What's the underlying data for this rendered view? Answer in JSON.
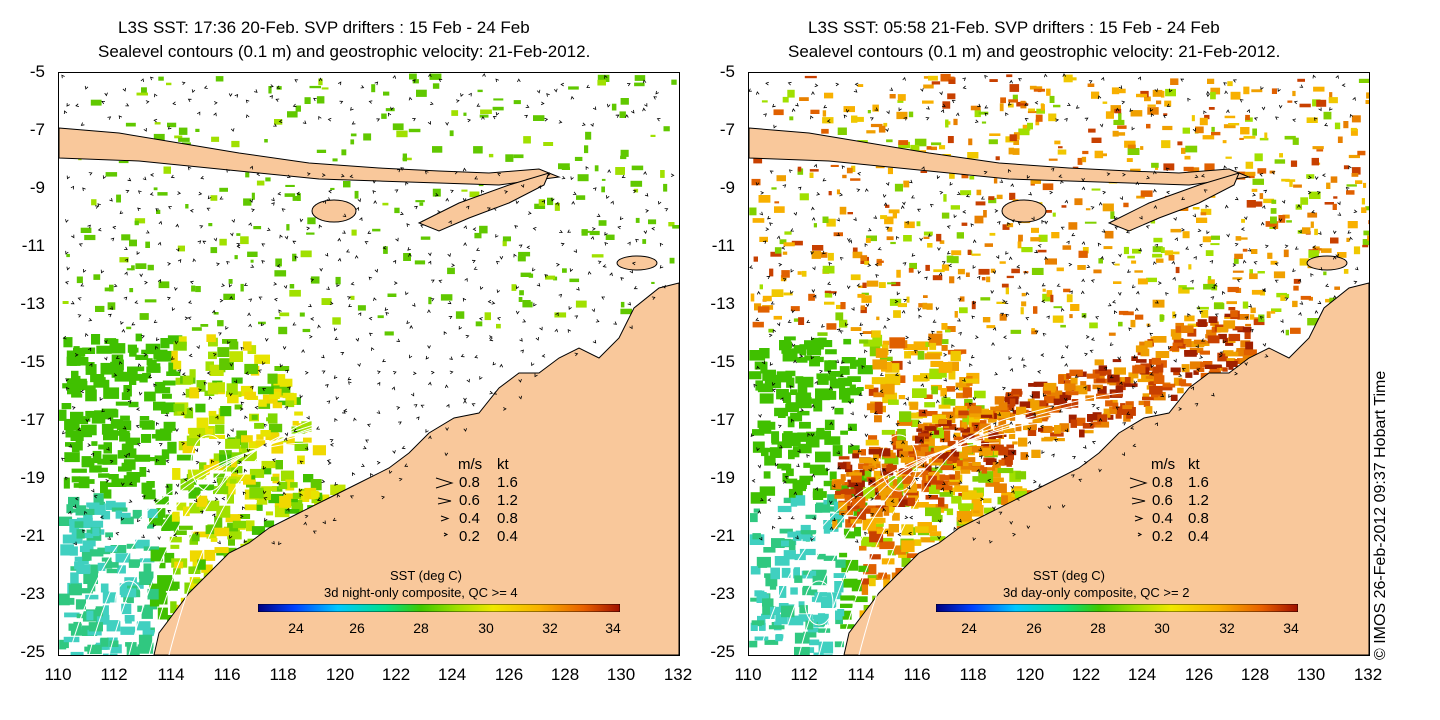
{
  "credit": "© IMOS 26-Feb-2012 09:37 Hobart Time",
  "panels": [
    {
      "title_line1": "L3S SST: 17:36 20-Feb. SVP drifters : 15 Feb - 24 Feb",
      "title_line2": "Sealevel contours (0.1 m) and geostrophic velocity: 21-Feb-2012.",
      "composite_label": "SST (deg C)",
      "composite_sub": "3d night-only composite, QC >= 4",
      "mode": "night"
    },
    {
      "title_line1": "L3S SST: 05:58 21-Feb. SVP drifters : 15 Feb - 24 Feb",
      "title_line2": "Sealevel contours (0.1 m) and geostrophic velocity: 21-Feb-2012.",
      "composite_label": "SST (deg C)",
      "composite_sub": "3d day-only composite, QC >= 2",
      "mode": "day"
    }
  ],
  "y_ticks": [
    "-5",
    "-7",
    "-9",
    "-11",
    "-13",
    "-15",
    "-17",
    "-19",
    "-21",
    "-23",
    "-25"
  ],
  "x_ticks": [
    "110",
    "112",
    "114",
    "116",
    "118",
    "120",
    "122",
    "124",
    "126",
    "128",
    "130",
    "132"
  ],
  "velocity_legend": {
    "header_ms": "m/s",
    "header_kt": "kt",
    "rows": [
      {
        "ms": "0.8",
        "kt": "1.6"
      },
      {
        "ms": "0.6",
        "kt": "1.2"
      },
      {
        "ms": "0.4",
        "kt": "0.8"
      },
      {
        "ms": "0.2",
        "kt": "0.4"
      }
    ]
  },
  "colorbar_ticks": [
    "24",
    "26",
    "28",
    "30",
    "32",
    "34"
  ],
  "colors": {
    "land": "#f9c89b",
    "coast": "#000000",
    "contour": "#ffffff",
    "colorbar": [
      "#00007f",
      "#0040ff",
      "#00c8ff",
      "#00e08a",
      "#40c800",
      "#a0e000",
      "#f0e800",
      "#f8b000",
      "#e86000",
      "#a01000"
    ]
  }
}
